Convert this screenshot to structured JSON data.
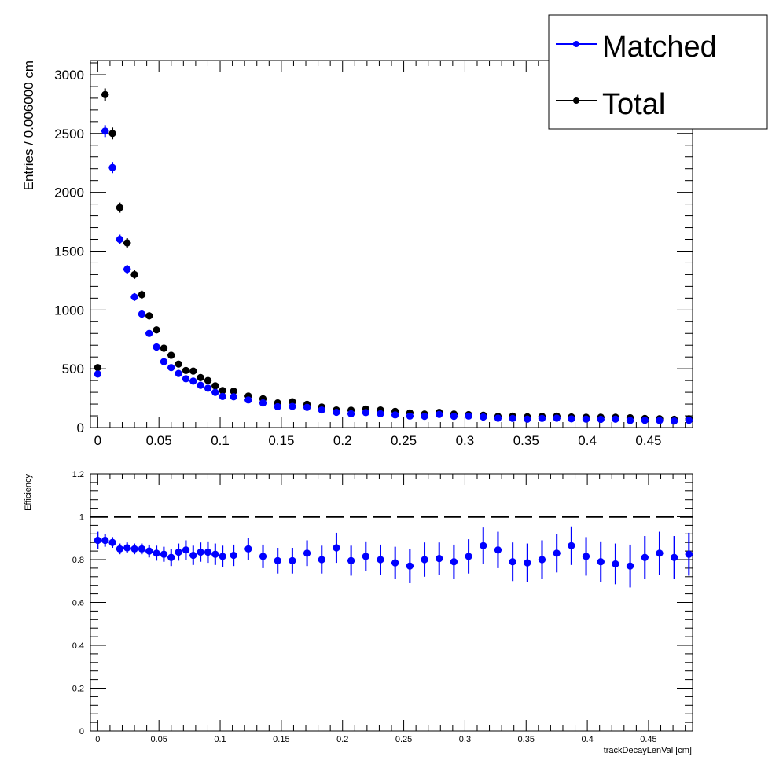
{
  "chart_data": [
    {
      "type": "scatter",
      "title": "",
      "xlabel": "",
      "ylabel": "Entries / 0.006000 cm",
      "xlim": [
        -0.006,
        0.486
      ],
      "ylim": [
        0,
        3120
      ],
      "xticks": [
        0,
        0.05,
        0.1,
        0.15,
        0.2,
        0.25,
        0.3,
        0.35,
        0.4,
        0.45
      ],
      "xtick_labels": [
        "0",
        "0.05",
        "0.1",
        "0.15",
        "0.2",
        "0.25",
        "0.3",
        "0.35",
        "0.4",
        "0.45"
      ],
      "yticks": [
        0,
        500,
        1000,
        1500,
        2000,
        2500,
        3000
      ],
      "ytick_labels": [
        "0",
        "500",
        "1000",
        "1500",
        "2000",
        "2500",
        "3000"
      ],
      "legend": {
        "position": "top-right",
        "entries": [
          "Matched",
          "Total"
        ]
      },
      "series": [
        {
          "name": "Matched",
          "color": "#0000ff",
          "x": [
            0,
            0.006,
            0.012,
            0.018,
            0.024,
            0.03,
            0.036,
            0.042,
            0.048,
            0.054,
            0.06,
            0.066,
            0.072,
            0.078,
            0.084,
            0.09,
            0.096,
            0.102,
            0.111,
            0.123,
            0.135,
            0.147,
            0.159,
            0.171,
            0.183,
            0.195,
            0.207,
            0.219,
            0.231,
            0.243,
            0.255,
            0.267,
            0.279,
            0.291,
            0.303,
            0.315,
            0.327,
            0.339,
            0.351,
            0.363,
            0.375,
            0.387,
            0.399,
            0.411,
            0.423,
            0.435,
            0.447,
            0.459,
            0.471,
            0.483
          ],
          "y": [
            455,
            2520,
            2210,
            1600,
            1345,
            1110,
            965,
            800,
            685,
            560,
            510,
            460,
            415,
            395,
            360,
            335,
            300,
            265,
            262,
            235,
            210,
            178,
            180,
            172,
            150,
            130,
            118,
            128,
            118,
            108,
            98,
            96,
            112,
            96,
            98,
            90,
            80,
            78,
            72,
            78,
            80,
            74,
            72,
            70,
            72,
            60,
            62,
            60,
            56,
            62
          ],
          "yerr": [
            21,
            50,
            47,
            40,
            37,
            33,
            31,
            28,
            26,
            24,
            23,
            21,
            20,
            20,
            19,
            18,
            17,
            16,
            16,
            15,
            14,
            13,
            13,
            13,
            12,
            11,
            11,
            11,
            11,
            10,
            10,
            10,
            11,
            10,
            10,
            9,
            9,
            9,
            8,
            9,
            9,
            9,
            8,
            8,
            8,
            8,
            8,
            8,
            7,
            8
          ],
          "xerr": 0.003
        },
        {
          "name": "Total",
          "color": "#000000",
          "x": [
            0,
            0.006,
            0.012,
            0.018,
            0.024,
            0.03,
            0.036,
            0.042,
            0.048,
            0.054,
            0.06,
            0.066,
            0.072,
            0.078,
            0.084,
            0.09,
            0.096,
            0.102,
            0.111,
            0.123,
            0.135,
            0.147,
            0.159,
            0.171,
            0.183,
            0.195,
            0.207,
            0.219,
            0.231,
            0.243,
            0.255,
            0.267,
            0.279,
            0.291,
            0.303,
            0.315,
            0.327,
            0.339,
            0.351,
            0.363,
            0.375,
            0.387,
            0.399,
            0.411,
            0.423,
            0.435,
            0.447,
            0.459,
            0.471,
            0.483
          ],
          "y": [
            510,
            2830,
            2500,
            1870,
            1570,
            1300,
            1130,
            950,
            830,
            675,
            615,
            540,
            485,
            480,
            425,
            400,
            355,
            315,
            310,
            268,
            245,
            210,
            220,
            198,
            175,
            150,
            148,
            158,
            150,
            138,
            125,
            115,
            130,
            115,
            110,
            105,
            95,
            98,
            92,
            95,
            98,
            90,
            88,
            88,
            88,
            84,
            78,
            75,
            70,
            75
          ],
          "yerr": [
            23,
            53,
            50,
            43,
            40,
            36,
            34,
            31,
            29,
            26,
            25,
            23,
            22,
            22,
            21,
            20,
            19,
            18,
            18,
            16,
            16,
            14,
            15,
            14,
            13,
            12,
            12,
            13,
            12,
            12,
            11,
            11,
            11,
            11,
            10,
            10,
            10,
            10,
            10,
            10,
            10,
            9,
            9,
            9,
            9,
            9,
            9,
            9,
            8,
            9
          ],
          "xerr": 0.003
        }
      ]
    },
    {
      "type": "scatter",
      "title": "",
      "xlabel": "trackDecayLenVal [cm]",
      "ylabel": "Efficiency",
      "xlim": [
        -0.006,
        0.486
      ],
      "ylim": [
        0,
        1.2
      ],
      "xticks": [
        0,
        0.05,
        0.1,
        0.15,
        0.2,
        0.25,
        0.3,
        0.35,
        0.4,
        0.45
      ],
      "xtick_labels": [
        "0",
        "0.05",
        "0.1",
        "0.15",
        "0.2",
        "0.25",
        "0.3",
        "0.35",
        "0.4",
        "0.45"
      ],
      "yticks": [
        0,
        0.2,
        0.4,
        0.6,
        0.8,
        1,
        1.2
      ],
      "ytick_labels": [
        "0",
        "0.2",
        "0.4",
        "0.6",
        "0.8",
        "1",
        "1.2"
      ],
      "reference_line": 1,
      "series": [
        {
          "color": "#0000ff",
          "x": [
            0,
            0.006,
            0.012,
            0.018,
            0.024,
            0.03,
            0.036,
            0.042,
            0.048,
            0.054,
            0.06,
            0.066,
            0.072,
            0.078,
            0.084,
            0.09,
            0.096,
            0.102,
            0.111,
            0.123,
            0.135,
            0.147,
            0.159,
            0.171,
            0.183,
            0.195,
            0.207,
            0.219,
            0.231,
            0.243,
            0.255,
            0.267,
            0.279,
            0.291,
            0.303,
            0.315,
            0.327,
            0.339,
            0.351,
            0.363,
            0.375,
            0.387,
            0.399,
            0.411,
            0.423,
            0.435,
            0.447,
            0.459,
            0.471,
            0.483
          ],
          "y": [
            0.89,
            0.89,
            0.88,
            0.85,
            0.855,
            0.85,
            0.85,
            0.84,
            0.83,
            0.825,
            0.81,
            0.835,
            0.845,
            0.82,
            0.835,
            0.835,
            0.825,
            0.815,
            0.82,
            0.85,
            0.815,
            0.795,
            0.795,
            0.83,
            0.8,
            0.855,
            0.795,
            0.815,
            0.8,
            0.785,
            0.77,
            0.8,
            0.805,
            0.79,
            0.815,
            0.865,
            0.845,
            0.79,
            0.785,
            0.8,
            0.83,
            0.865,
            0.815,
            0.79,
            0.78,
            0.77,
            0.81,
            0.83,
            0.81,
            0.825
          ],
          "yerr": [
            0.04,
            0.03,
            0.025,
            0.025,
            0.025,
            0.025,
            0.025,
            0.03,
            0.035,
            0.035,
            0.04,
            0.04,
            0.045,
            0.045,
            0.045,
            0.05,
            0.05,
            0.05,
            0.05,
            0.05,
            0.055,
            0.06,
            0.06,
            0.06,
            0.065,
            0.07,
            0.07,
            0.07,
            0.07,
            0.075,
            0.08,
            0.08,
            0.075,
            0.08,
            0.08,
            0.085,
            0.085,
            0.09,
            0.09,
            0.09,
            0.09,
            0.09,
            0.09,
            0.095,
            0.095,
            0.1,
            0.1,
            0.1,
            0.1,
            0.1
          ],
          "xerr": 0.003
        }
      ]
    }
  ]
}
